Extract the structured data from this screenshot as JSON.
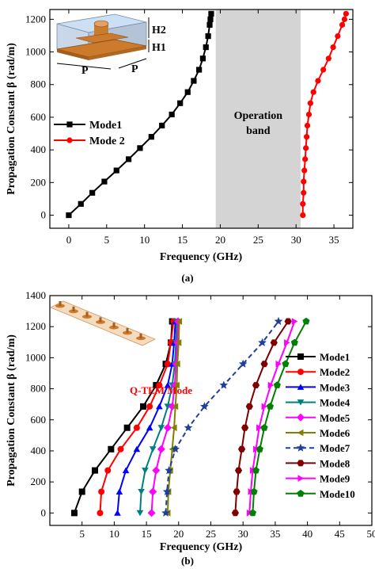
{
  "colors": {
    "band": "#d4d4d4",
    "copper": "#cc7a2c",
    "substrate": "#c9d7e8",
    "mode7": "#1f3f9a"
  },
  "chart_data": [
    {
      "type": "line",
      "panel_label": "(a)",
      "xlabel": "Frequency (GHz)",
      "ylabel": "Propagation Constant β (rad/m)",
      "xlim": [
        -2.5,
        37.5
      ],
      "ylim": [
        -80,
        1260
      ],
      "xticks": [
        0,
        5,
        10,
        15,
        20,
        25,
        30,
        35
      ],
      "yticks": [
        0,
        200,
        400,
        600,
        800,
        1000,
        1200
      ],
      "legend": {
        "placement": "middle-left"
      },
      "inset": {
        "labels": [
          "H2",
          "H1",
          "P",
          "P"
        ]
      },
      "band": {
        "label_line1": "Operation",
        "label_line2": "band",
        "x": [
          19.4,
          30.6
        ]
      },
      "beta": [
        0,
        69,
        137,
        206,
        274,
        343,
        411,
        480,
        549,
        617,
        686,
        754,
        823,
        891,
        960,
        1029,
        1097,
        1166,
        1200,
        1234
      ],
      "series": [
        {
          "name": "Mode1",
          "color": "#000000",
          "marker": "square",
          "x": [
            0.0,
            1.6,
            3.1,
            4.7,
            6.3,
            7.9,
            9.4,
            10.9,
            12.3,
            13.6,
            14.7,
            15.7,
            16.5,
            17.2,
            17.7,
            18.1,
            18.4,
            18.6,
            18.7,
            18.8
          ]
        },
        {
          "name": "Mode 2",
          "color": "#ff0000",
          "marker": "circle",
          "x": [
            30.9,
            30.9,
            31.0,
            31.0,
            31.1,
            31.2,
            31.3,
            31.4,
            31.5,
            31.7,
            31.9,
            32.3,
            32.9,
            33.6,
            34.3,
            34.9,
            35.5,
            36.1,
            36.4,
            36.6
          ]
        }
      ]
    },
    {
      "type": "line",
      "panel_label": "(b)",
      "xlabel": "Frequency (GHz)",
      "ylabel": "Propagation Constant β (rad/m)",
      "xlim": [
        0,
        50
      ],
      "ylim": [
        -80,
        1400
      ],
      "xticks": [
        5,
        10,
        15,
        20,
        25,
        30,
        35,
        40,
        45,
        50
      ],
      "yticks": [
        0,
        200,
        400,
        600,
        800,
        1000,
        1200,
        1400
      ],
      "legend": {
        "placement": "right"
      },
      "annotation": "Q-TEM Mode",
      "beta": [
        0,
        137,
        274,
        411,
        549,
        686,
        823,
        960,
        1097,
        1234
      ],
      "series": [
        {
          "name": "Mode1",
          "color": "#000000",
          "marker": "square",
          "x": [
            3.8,
            5.0,
            7.0,
            9.5,
            12.0,
            14.5,
            16.5,
            18.0,
            18.8,
            19.0
          ]
        },
        {
          "name": "Mode2",
          "color": "#ff0000",
          "marker": "circle",
          "x": [
            7.8,
            8.0,
            9.0,
            11.0,
            13.5,
            15.5,
            17.0,
            18.3,
            18.8,
            19.2
          ]
        },
        {
          "name": "Mode3",
          "color": "#0000ff",
          "marker": "triangle",
          "x": [
            10.5,
            10.8,
            11.8,
            13.5,
            15.5,
            17.0,
            18.3,
            19.0,
            19.3,
            19.5
          ]
        },
        {
          "name": "Mode4",
          "color": "#007f7f",
          "marker": "triangle-down",
          "x": [
            14.0,
            14.2,
            14.8,
            16.0,
            17.3,
            18.3,
            19.0,
            19.4,
            19.6,
            19.7
          ]
        },
        {
          "name": "Mode5",
          "color": "#ff00ff",
          "marker": "diamond",
          "x": [
            15.8,
            16.0,
            16.5,
            17.3,
            18.3,
            19.0,
            19.4,
            19.6,
            19.8,
            19.9
          ]
        },
        {
          "name": "Mode6",
          "color": "#808000",
          "marker": "triangle-left",
          "x": [
            18.3,
            18.4,
            18.7,
            19.0,
            19.3,
            19.5,
            19.7,
            19.8,
            20.0,
            20.1
          ]
        },
        {
          "name": "Mode7",
          "color": "#1f3f9a",
          "marker": "star",
          "dashed": true,
          "x": [
            18.0,
            18.2,
            18.5,
            19.5,
            21.5,
            24.0,
            27.0,
            30.0,
            33.0,
            35.5
          ]
        },
        {
          "name": "Mode8",
          "color": "#7f0000",
          "marker": "hexagon",
          "x": [
            28.8,
            29.0,
            29.3,
            29.8,
            30.3,
            31.0,
            32.0,
            33.3,
            34.8,
            37.0
          ]
        },
        {
          "name": "Mode9",
          "color": "#ff00ff",
          "marker": "triangle-right",
          "x": [
            31.0,
            31.2,
            31.5,
            32.0,
            32.5,
            33.3,
            34.3,
            35.5,
            36.8,
            38.0
          ]
        },
        {
          "name": "Mode10",
          "color": "#008000",
          "marker": "pentagon",
          "x": [
            31.5,
            31.7,
            32.0,
            32.6,
            33.3,
            34.2,
            35.3,
            36.6,
            38.0,
            39.8
          ]
        }
      ]
    }
  ]
}
